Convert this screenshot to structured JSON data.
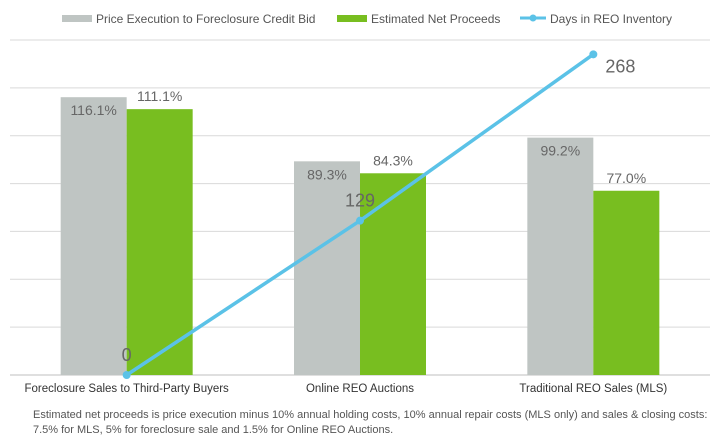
{
  "colors": {
    "price_execution": "#bfc5c3",
    "net_proceeds": "#78be20",
    "days_reo": "#5bc2e7",
    "gridline": "#d9d9d9"
  },
  "legend": [
    {
      "label": "Price Execution to Foreclosure Credit Bid",
      "symbol": "bar"
    },
    {
      "label": "Estimated Net Proceeds",
      "symbol": "bar"
    },
    {
      "label": "Days in REO Inventory",
      "symbol": "line-marker"
    }
  ],
  "chart_data": {
    "type": "bar",
    "categories": [
      "Foreclosure Sales to Third-Party Buyers",
      "Online REO Auctions",
      "Traditional REO Sales (MLS)"
    ],
    "series": [
      {
        "name": "Price Execution to Foreclosure Credit Bid",
        "type": "bar",
        "values": [
          116.1,
          89.3,
          99.2
        ],
        "labels": [
          "116.1%",
          "89.3%",
          "99.2%"
        ]
      },
      {
        "name": "Estimated Net Proceeds",
        "type": "bar",
        "values": [
          111.1,
          84.3,
          77.0
        ],
        "labels": [
          "111.1%",
          "84.3%",
          "77.0%"
        ]
      },
      {
        "name": "Days in REO Inventory",
        "type": "line",
        "values": [
          0,
          129,
          268
        ],
        "labels": [
          "0",
          "129",
          "268"
        ]
      }
    ],
    "ylim_bars": [
      0,
      140
    ],
    "ylim_line": [
      0,
      280
    ],
    "grid": true,
    "legend_position": "top",
    "xlabel": "",
    "ylabel": ""
  },
  "footnote": "Estimated net proceeds is price execution minus 10% annual holding costs, 10% annual repair costs (MLS only) and sales & closing costs: 7.5% for MLS, 5% for foreclosure sale and 1.5% for Online REO Auctions."
}
